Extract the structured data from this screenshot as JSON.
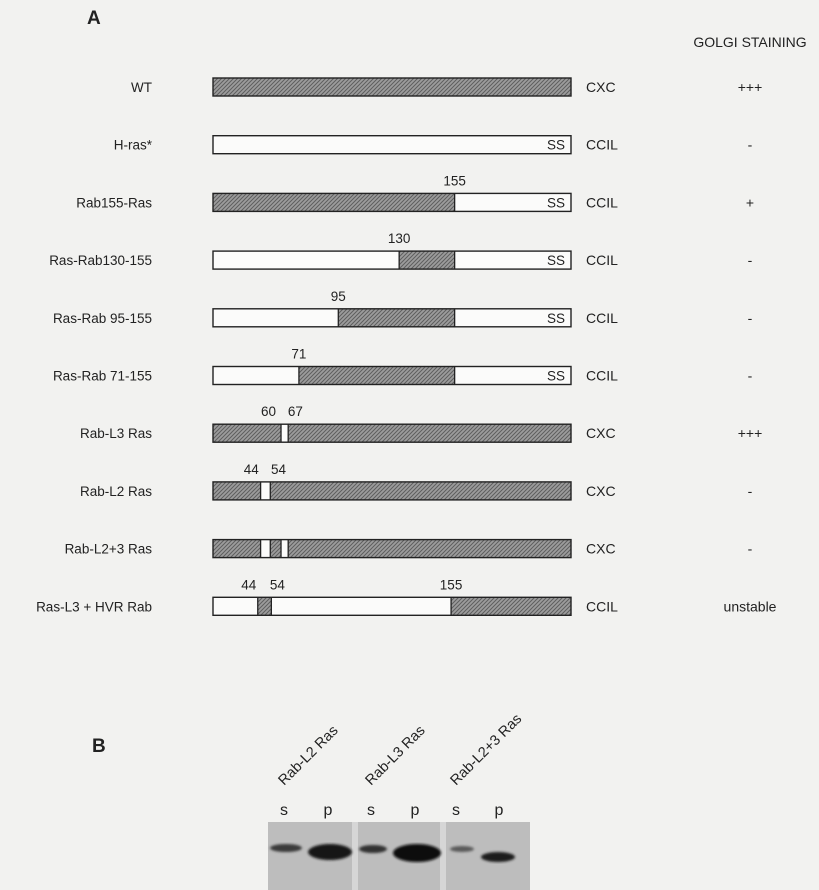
{
  "panel_a": {
    "letter": "A",
    "golgi_header": "GOLGI STAINING",
    "constructs": [
      {
        "name": "WT",
        "motif": "CXC",
        "golgi": "+++",
        "ss": false,
        "segments": [
          {
            "from": 0,
            "to": 1,
            "fill": "rab"
          }
        ],
        "labels": []
      },
      {
        "name": "H-ras*",
        "motif": "CCIL",
        "golgi": "-",
        "ss": true,
        "segments": [
          {
            "from": 0,
            "to": 1,
            "fill": "ras"
          }
        ],
        "labels": []
      },
      {
        "name": "Rab155-Ras",
        "motif": "CCIL",
        "golgi": "+",
        "ss": true,
        "segments": [
          {
            "from": 0,
            "to": 0.675,
            "fill": "rab"
          },
          {
            "from": 0.675,
            "to": 1,
            "fill": "ras"
          }
        ],
        "labels": [
          {
            "text": "155",
            "at": 0.675
          }
        ]
      },
      {
        "name": "Ras-Rab130-155",
        "motif": "CCIL",
        "golgi": "-",
        "ss": true,
        "segments": [
          {
            "from": 0,
            "to": 0.52,
            "fill": "ras"
          },
          {
            "from": 0.52,
            "to": 0.675,
            "fill": "rab"
          },
          {
            "from": 0.675,
            "to": 1,
            "fill": "ras"
          }
        ],
        "labels": [
          {
            "text": "130",
            "at": 0.52
          }
        ]
      },
      {
        "name": "Ras-Rab 95-155",
        "motif": "CCIL",
        "golgi": "-",
        "ss": true,
        "segments": [
          {
            "from": 0,
            "to": 0.35,
            "fill": "ras"
          },
          {
            "from": 0.35,
            "to": 0.675,
            "fill": "rab"
          },
          {
            "from": 0.675,
            "to": 1,
            "fill": "ras"
          }
        ],
        "labels": [
          {
            "text": "95",
            "at": 0.35
          }
        ]
      },
      {
        "name": "Ras-Rab 71-155",
        "motif": "CCIL",
        "golgi": "-",
        "ss": true,
        "segments": [
          {
            "from": 0,
            "to": 0.24,
            "fill": "ras"
          },
          {
            "from": 0.24,
            "to": 0.675,
            "fill": "rab"
          },
          {
            "from": 0.675,
            "to": 1,
            "fill": "ras"
          }
        ],
        "labels": [
          {
            "text": "71",
            "at": 0.24
          }
        ]
      },
      {
        "name": "Rab-L3 Ras",
        "motif": "CXC",
        "golgi": "+++",
        "ss": false,
        "segments": [
          {
            "from": 0,
            "to": 0.19,
            "fill": "rab"
          },
          {
            "from": 0.19,
            "to": 0.21,
            "fill": "ras"
          },
          {
            "from": 0.21,
            "to": 1,
            "fill": "rab"
          }
        ],
        "labels": [
          {
            "text": "60",
            "at": 0.155
          },
          {
            "text": "67",
            "at": 0.23
          }
        ]
      },
      {
        "name": "Rab-L2 Ras",
        "motif": "CXC",
        "golgi": "-",
        "ss": false,
        "segments": [
          {
            "from": 0,
            "to": 0.133,
            "fill": "rab"
          },
          {
            "from": 0.133,
            "to": 0.16,
            "fill": "ras"
          },
          {
            "from": 0.16,
            "to": 1,
            "fill": "rab"
          }
        ],
        "labels": [
          {
            "text": "44",
            "at": 0.107
          },
          {
            "text": "54",
            "at": 0.183
          }
        ]
      },
      {
        "name": "Rab-L2+3 Ras",
        "motif": "CXC",
        "golgi": "-",
        "ss": false,
        "segments": [
          {
            "from": 0,
            "to": 0.133,
            "fill": "rab"
          },
          {
            "from": 0.133,
            "to": 0.16,
            "fill": "ras"
          },
          {
            "from": 0.16,
            "to": 0.19,
            "fill": "rab"
          },
          {
            "from": 0.19,
            "to": 0.21,
            "fill": "ras"
          },
          {
            "from": 0.21,
            "to": 1,
            "fill": "rab"
          }
        ],
        "labels": []
      },
      {
        "name": "Ras-L3 + HVR Rab",
        "motif": "CCIL",
        "golgi": "unstable",
        "ss": false,
        "segments": [
          {
            "from": 0,
            "to": 0.125,
            "fill": "ras"
          },
          {
            "from": 0.125,
            "to": 0.163,
            "fill": "rab"
          },
          {
            "from": 0.163,
            "to": 0.665,
            "fill": "ras"
          },
          {
            "from": 0.665,
            "to": 1,
            "fill": "rab"
          }
        ],
        "labels": [
          {
            "text": "44",
            "at": 0.1
          },
          {
            "text": "54",
            "at": 0.18
          },
          {
            "text": "155",
            "at": 0.665
          }
        ]
      }
    ],
    "ss_text": "SS"
  },
  "panel_b": {
    "letter": "B",
    "lanes": [
      {
        "label": "Rab-L2 Ras",
        "fractions": [
          "s",
          "p"
        ]
      },
      {
        "label": "Rab-L3 Ras",
        "fractions": [
          "s",
          "p"
        ]
      },
      {
        "label": "Rab-L2+3 Ras",
        "fractions": [
          "s",
          "p"
        ]
      }
    ]
  }
}
